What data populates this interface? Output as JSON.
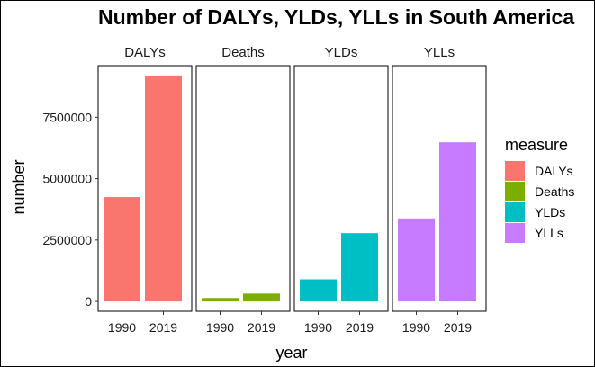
{
  "chart_data": {
    "type": "bar",
    "title": "Number of DALYs, YLDs, YLLs in South America",
    "xlabel": "year",
    "ylabel": "number",
    "categories": [
      "1990",
      "2019"
    ],
    "ylim": [
      -400000,
      9600000
    ],
    "yticks": [
      0,
      2500000,
      5000000,
      7500000
    ],
    "ytick_labels": [
      "0",
      "2500000",
      "5000000",
      "7500000"
    ],
    "grid": false,
    "legend_title": "measure",
    "legend_position": "right",
    "panels": [
      {
        "name": "DALYs",
        "color": "#F8766D",
        "values": [
          4250000,
          9200000
        ]
      },
      {
        "name": "Deaths",
        "color": "#7CAE00",
        "values": [
          140000,
          320000
        ]
      },
      {
        "name": "YLDs",
        "color": "#00BFC4",
        "values": [
          900000,
          2780000
        ]
      },
      {
        "name": "YLLs",
        "color": "#C77CFF",
        "values": [
          3380000,
          6480000
        ]
      }
    ]
  }
}
